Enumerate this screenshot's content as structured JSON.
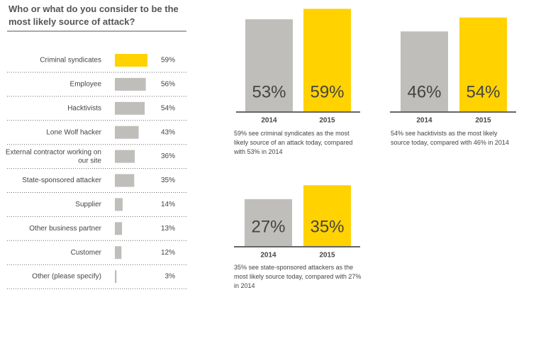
{
  "chart_data": [
    {
      "type": "hbar",
      "title": "Who or what do you consider to be the most likely source of attack?",
      "categories": [
        "Criminal syndicates",
        "Employee",
        "Hacktivists",
        "Lone Wolf hacker",
        "External contractor working on our site",
        "State-sponsored attacker",
        "Supplier",
        "Other business partner",
        "Customer",
        "Other (please specify)"
      ],
      "values": [
        59,
        56,
        54,
        43,
        36,
        35,
        14,
        13,
        12,
        3
      ],
      "value_labels": [
        "59%",
        "56%",
        "54%",
        "43%",
        "36%",
        "35%",
        "14%",
        "13%",
        "12%",
        "3%"
      ],
      "colors": [
        "#ffd200",
        "#c0bebb",
        "#c0bebb",
        "#c0bebb",
        "#c0bebb",
        "#c0bebb",
        "#c0bebb",
        "#c0bebb",
        "#c0bebb",
        "#c0bebb"
      ]
    },
    {
      "type": "column",
      "categories": [
        "2014",
        "2015"
      ],
      "values": [
        53,
        59
      ],
      "value_labels": [
        "53%",
        "59%"
      ],
      "colors": [
        "#c0bebb",
        "#ffd200"
      ],
      "caption": "59% see criminal syndicates as the most likely source of an attack today, compared with 53% in 2014"
    },
    {
      "type": "column",
      "categories": [
        "2014",
        "2015"
      ],
      "values": [
        46,
        54
      ],
      "value_labels": [
        "46%",
        "54%"
      ],
      "colors": [
        "#c0bebb",
        "#ffd200"
      ],
      "caption": "54% see hacktivists as the most likely source today, compared with 46% in 2014"
    },
    {
      "type": "column",
      "categories": [
        "2014",
        "2015"
      ],
      "values": [
        27,
        35
      ],
      "value_labels": [
        "27%",
        "35%"
      ],
      "colors": [
        "#c0bebb",
        "#ffd200"
      ],
      "caption": "35% see state-sponsored attackers as the most likely source today, compared with 27% in 2014"
    }
  ]
}
